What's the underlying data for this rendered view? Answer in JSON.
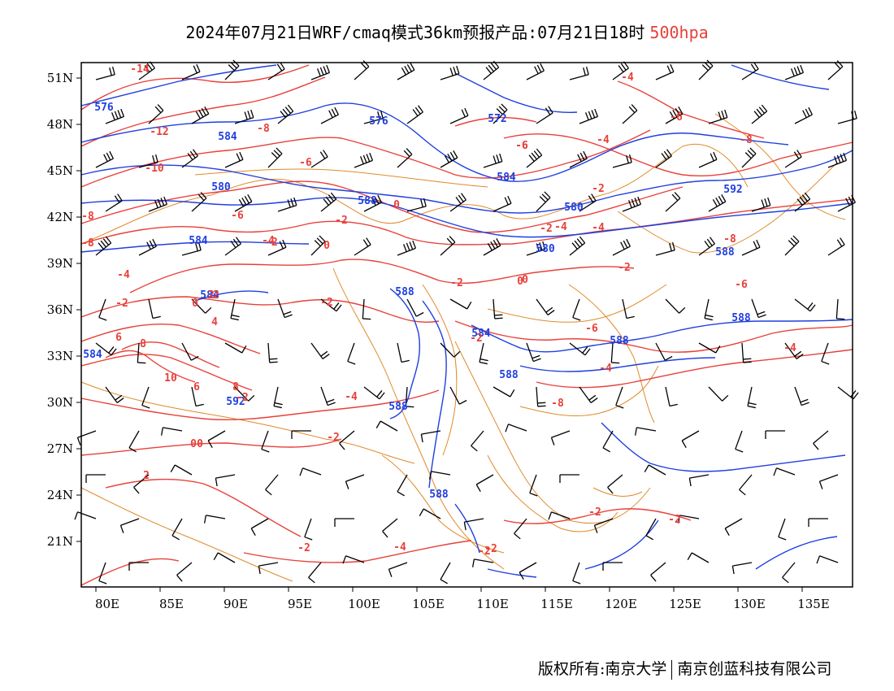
{
  "title": {
    "main": "2024年07月21日WRF/cmaq模式36km预报产品:07月21日18时",
    "level": "500hpa",
    "level_color": "#e8403a"
  },
  "axes": {
    "lon_labels": [
      "80E",
      "85E",
      "90E",
      "95E",
      "100E",
      "105E",
      "110E",
      "115E",
      "120E",
      "125E",
      "130E",
      "135E"
    ],
    "lat_labels": [
      "51N",
      "48N",
      "45N",
      "42N",
      "39N",
      "36N",
      "33N",
      "30N",
      "27N",
      "24N",
      "21N"
    ]
  },
  "colors": {
    "geopotential": "#1f3fe0",
    "temperature": "#e8403a",
    "boundaries": "#e08a2a",
    "wind_barbs": "#000000"
  },
  "height_labels": [
    "588",
    "576",
    "584",
    "580",
    "584",
    "584",
    "584",
    "592",
    "588",
    "588",
    "588",
    "584",
    "576",
    "572",
    "584",
    "580",
    "580",
    "592",
    "588",
    "588",
    "588",
    "588"
  ],
  "temp_labels": [
    "-14",
    "-12",
    "-10",
    "-8",
    "-8",
    "-6",
    "-8",
    "-6",
    "-4",
    "-2",
    "0",
    "0",
    "-2",
    "-2",
    "-4",
    "-4",
    "-2",
    "-4",
    "-6",
    "-4",
    "-6",
    "-8",
    "-8",
    "-6",
    "-4",
    "-4",
    "-6",
    "-8",
    "-4",
    "-2",
    "0",
    "-2",
    "-2",
    "-2",
    "-2",
    "0",
    "6",
    "8",
    "10",
    "6",
    "8",
    "2",
    "0",
    "-2",
    "-2",
    "-2",
    "-2",
    "-4",
    "-2",
    "2",
    "-2",
    "-4",
    "0",
    "-2",
    "-6",
    "0",
    "4",
    "2"
  ],
  "copyright": {
    "left": "版权所有:南京大学",
    "right": "南京创蓝科技有限公司"
  }
}
